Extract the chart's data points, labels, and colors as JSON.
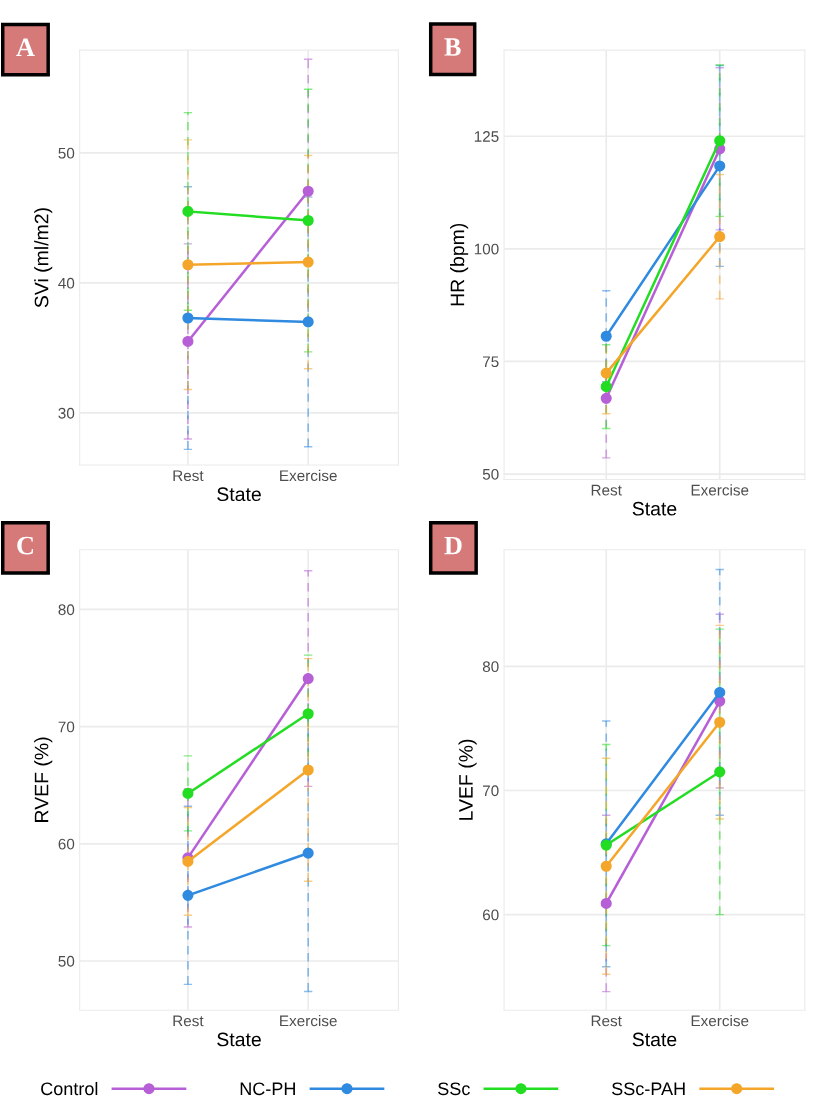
{
  "chart_data": [
    {
      "type": "line",
      "annotations": [
        "A"
      ],
      "xlabel": "State",
      "ylabel": "SVi (ml/m2)",
      "categories": [
        "Rest",
        "Exercise"
      ],
      "ylim": [
        26,
        57.9
      ],
      "yticks": [
        30,
        40,
        50
      ],
      "grid": true,
      "marker": "circle",
      "line_style": "solid",
      "series": [
        {
          "color": "#b65fd6",
          "values": [
            35.5,
            47.05
          ],
          "errors": [
            7.5,
            10.15
          ]
        },
        {
          "color": "#2f8ae0",
          "values": [
            37.3,
            37.0
          ],
          "errors": [
            10.1,
            9.6
          ]
        },
        {
          "color": "#22dd22",
          "values": [
            45.5,
            44.8
          ],
          "errors": [
            7.6,
            10.1
          ]
        },
        {
          "color": "#f4a62a",
          "values": [
            41.4,
            41.6
          ],
          "errors": [
            9.6,
            8.2
          ]
        }
      ]
    },
    {
      "type": "line",
      "annotations": [
        "B"
      ],
      "xlabel": "State",
      "ylabel": "HR (bpm)",
      "categories": [
        "Rest",
        "Exercise"
      ],
      "ylim": [
        48.8,
        144.1
      ],
      "yticks": [
        50,
        75,
        100,
        125
      ],
      "grid": true,
      "marker": "circle",
      "line_style": "solid",
      "series": [
        {
          "color": "#b65fd6",
          "values": [
            66.8,
            122.2
          ],
          "errors": [
            13.2,
            18
          ]
        },
        {
          "color": "#2f8ae0",
          "values": [
            80.6,
            118.4
          ],
          "errors": [
            10.1,
            22.3
          ]
        },
        {
          "color": "#22dd22",
          "values": [
            69.4,
            124.0
          ],
          "errors": [
            9.3,
            16.8
          ]
        },
        {
          "color": "#f4a62a",
          "values": [
            72.4,
            102.7
          ],
          "errors": [
            9.0,
            13.8
          ]
        }
      ]
    },
    {
      "type": "line",
      "annotations": [
        "C"
      ],
      "xlabel": "State",
      "ylabel": "RVEF (%)",
      "categories": [
        "Rest",
        "Exercise"
      ],
      "ylim": [
        45.8,
        85.1
      ],
      "yticks": [
        50,
        60,
        70,
        80
      ],
      "grid": true,
      "marker": "circle",
      "line_style": "solid",
      "series": [
        {
          "color": "#b65fd6",
          "values": [
            58.8,
            74.1
          ],
          "errors": [
            5.9,
            9.2
          ]
        },
        {
          "color": "#2f8ae0",
          "values": [
            55.6,
            59.2
          ],
          "errors": [
            7.6,
            11.8
          ]
        },
        {
          "color": "#22dd22",
          "values": [
            64.3,
            71.1
          ],
          "errors": [
            3.2,
            5.0
          ]
        },
        {
          "color": "#f4a62a",
          "values": [
            58.5,
            66.3
          ],
          "errors": [
            4.6,
            9.5
          ]
        }
      ]
    },
    {
      "type": "line",
      "annotations": [
        "D"
      ],
      "xlabel": "State",
      "ylabel": "LVEF (%)",
      "categories": [
        "Rest",
        "Exercise"
      ],
      "ylim": [
        52.3,
        89.4
      ],
      "yticks": [
        60,
        70,
        80
      ],
      "grid": true,
      "marker": "circle",
      "line_style": "solid",
      "legend": "bottom",
      "series": [
        {
          "name": "Control",
          "color": "#b65fd6",
          "values": [
            60.9,
            77.2
          ],
          "errors": [
            7.1,
            7.0
          ]
        },
        {
          "name": "NC-PH",
          "color": "#2f8ae0",
          "values": [
            65.7,
            77.9
          ],
          "errors": [
            9.9,
            9.9
          ]
        },
        {
          "name": "SSc",
          "color": "#22dd22",
          "values": [
            65.6,
            71.5
          ],
          "errors": [
            8.1,
            11.5
          ]
        },
        {
          "name": "SSc-PAH",
          "color": "#f4a62a",
          "values": [
            63.9,
            75.5
          ],
          "errors": [
            8.7,
            7.8
          ]
        }
      ]
    }
  ]
}
